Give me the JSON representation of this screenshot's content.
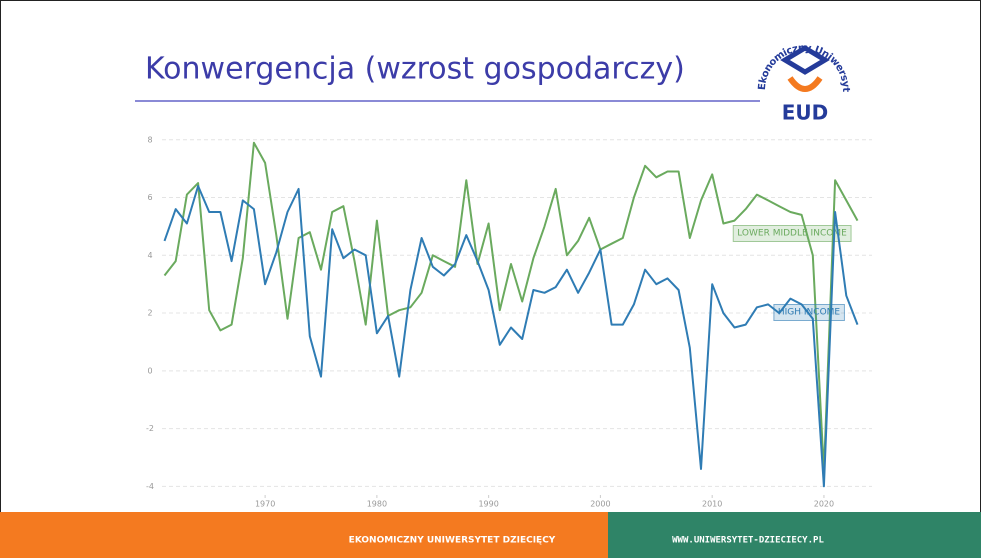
{
  "slide": {
    "title": "Konwergencja (wzrost gospodarczy)",
    "footer_left": "EKONOMICZNY UNIWERSYTET DZIECIĘCY",
    "footer_right": "WWW.UNIWERSYTET-DZIECIECY.PL",
    "logo": {
      "arc_text": "Ekonomiczny Uniwersytet Dziecięcy",
      "abbr": "EUD"
    }
  },
  "chart_data": {
    "type": "line",
    "x": [
      1961,
      1962,
      1963,
      1964,
      1965,
      1966,
      1967,
      1968,
      1969,
      1970,
      1971,
      1972,
      1973,
      1974,
      1975,
      1976,
      1977,
      1978,
      1979,
      1980,
      1981,
      1982,
      1983,
      1984,
      1985,
      1986,
      1987,
      1988,
      1989,
      1990,
      1991,
      1992,
      1993,
      1994,
      1995,
      1996,
      1997,
      1998,
      1999,
      2000,
      2001,
      2002,
      2003,
      2004,
      2005,
      2006,
      2007,
      2008,
      2009,
      2010,
      2011,
      2012,
      2013,
      2014,
      2015,
      2016,
      2017,
      2018,
      2019,
      2020,
      2021,
      2022,
      2023
    ],
    "xlim": [
      1959.7,
      2024.3
    ],
    "xticks": [
      1970,
      1980,
      1990,
      2000,
      2010,
      2020
    ],
    "ylim": [
      -4.3,
      8.2
    ],
    "yticks": [
      -4,
      -2,
      0,
      2,
      4,
      6,
      8
    ],
    "grid": true,
    "series": [
      {
        "name": "HIGH INCOME",
        "color": "#2f7cb4",
        "values": [
          4.5,
          5.6,
          5.1,
          6.4,
          5.5,
          5.5,
          3.8,
          5.9,
          5.6,
          3.0,
          4.1,
          5.5,
          6.3,
          1.2,
          -0.2,
          4.9,
          3.9,
          4.2,
          4.0,
          1.3,
          1.9,
          -0.2,
          2.8,
          4.6,
          3.6,
          3.3,
          3.7,
          4.7,
          3.8,
          2.8,
          0.9,
          1.5,
          1.1,
          2.8,
          2.7,
          2.9,
          3.5,
          2.7,
          3.4,
          4.2,
          1.6,
          1.6,
          2.3,
          3.5,
          3.0,
          3.2,
          2.8,
          0.8,
          -3.4,
          3.0,
          2.0,
          1.5,
          1.6,
          2.2,
          2.3,
          2.0,
          2.5,
          2.3,
          1.8,
          -4.0,
          5.5,
          2.6,
          1.6
        ]
      },
      {
        "name": "LOWER MIDDLE INCOME",
        "color": "#6aaa5e",
        "values": [
          3.3,
          3.8,
          6.1,
          6.5,
          2.1,
          1.4,
          1.6,
          3.9,
          7.9,
          7.2,
          4.7,
          1.8,
          4.6,
          4.8,
          3.5,
          5.5,
          5.7,
          3.8,
          1.6,
          5.2,
          1.9,
          2.1,
          2.2,
          2.7,
          4.0,
          3.8,
          3.6,
          6.6,
          3.7,
          5.1,
          2.1,
          3.7,
          2.4,
          3.9,
          5.0,
          6.3,
          4.0,
          4.5,
          5.3,
          4.2,
          4.4,
          4.6,
          6.0,
          7.1,
          6.7,
          6.9,
          6.9,
          4.6,
          5.9,
          6.8,
          5.1,
          5.2,
          5.6,
          6.1,
          5.9,
          5.7,
          5.5,
          5.4,
          4.0,
          -3.5,
          6.6,
          5.9,
          5.2
        ]
      }
    ]
  }
}
